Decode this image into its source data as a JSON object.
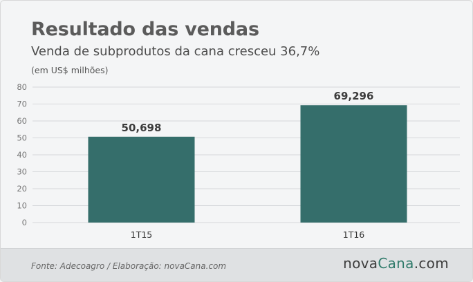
{
  "header": {
    "title": "Resultado das vendas",
    "subtitle": "Venda de subprodutos da cana cresceu 36,7%",
    "unit": "(em US$ milhões)"
  },
  "footer": {
    "source": "Fonte: Adecoagro / Elaboração: novaCana.com",
    "logo_part1": "nova",
    "logo_part2": "Cana",
    "logo_part3": ".com"
  },
  "colors": {
    "bar": "#356e6b",
    "grid": "#d6d8db",
    "logo_accent": "#2f7a6a"
  },
  "chart_data": {
    "type": "bar",
    "title": "Resultado das vendas",
    "subtitle": "Venda de subprodutos da cana cresceu 36,7%",
    "ylabel": "(em US$ milhões)",
    "categories": [
      "1T15",
      "1T16"
    ],
    "values": [
      50.698,
      69.296
    ],
    "value_labels": [
      "50,698",
      "69,296"
    ],
    "ylim": [
      0,
      80
    ],
    "yticks": [
      0,
      10,
      20,
      30,
      40,
      50,
      60,
      70,
      80
    ],
    "grid": true
  }
}
